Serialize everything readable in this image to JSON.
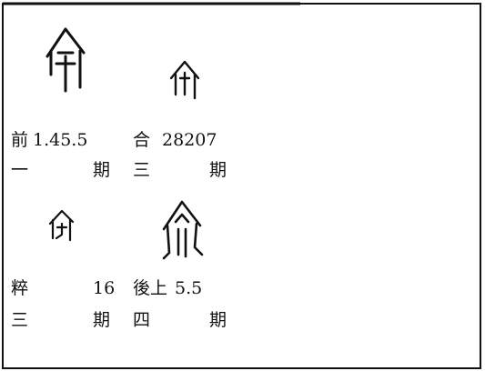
{
  "entries": [
    {
      "source": "前",
      "number": "1.45.5",
      "period_numeral": "一",
      "period_word": "期"
    },
    {
      "source": "合",
      "number": "28207",
      "period_numeral": "三",
      "period_word": "期"
    },
    {
      "source": "粹",
      "number": "16",
      "period_numeral": "三",
      "period_word": "期"
    },
    {
      "source": "後上",
      "number": "5.5",
      "period_numeral": "四",
      "period_word": "期"
    }
  ]
}
